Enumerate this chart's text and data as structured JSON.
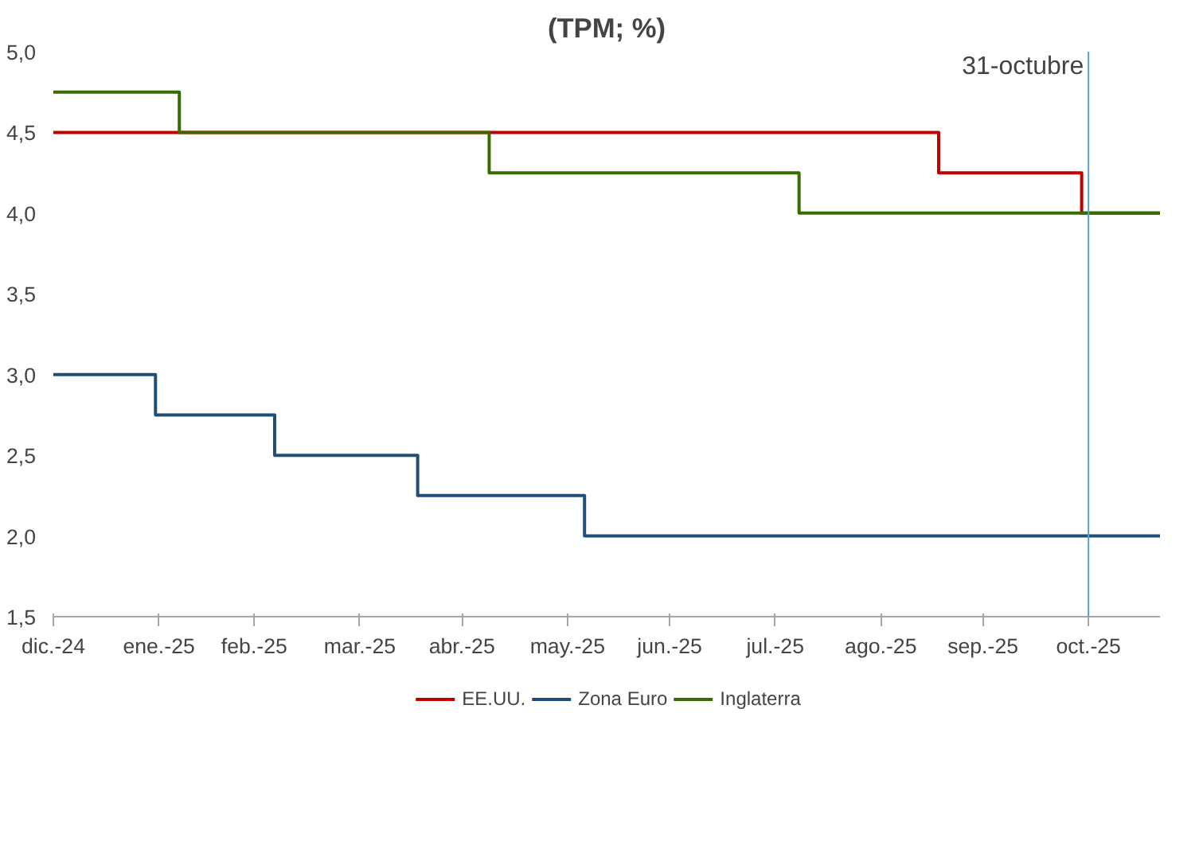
{
  "chart_data": {
    "type": "step",
    "title": "(TPM; %)",
    "xlim": [
      "2024-12-31",
      "2025-11-21"
    ],
    "xticks": [
      {
        "value": "2024-12-31",
        "label": "dic.-24"
      },
      {
        "value": "2025-01-31",
        "label": "ene.-25"
      },
      {
        "value": "2025-02-28",
        "label": "feb.-25"
      },
      {
        "value": "2025-03-31",
        "label": "mar.-25"
      },
      {
        "value": "2025-04-30",
        "label": "abr.-25"
      },
      {
        "value": "2025-05-31",
        "label": "may.-25"
      },
      {
        "value": "2025-06-30",
        "label": "jun.-25"
      },
      {
        "value": "2025-07-31",
        "label": "jul.-25"
      },
      {
        "value": "2025-08-31",
        "label": "ago.-25"
      },
      {
        "value": "2025-09-30",
        "label": "sep.-25"
      },
      {
        "value": "2025-10-31",
        "label": "oct.-25"
      }
    ],
    "ylim": [
      1.5,
      5.0
    ],
    "yticks": [
      {
        "value": 1.5,
        "label": "1,5"
      },
      {
        "value": 2.0,
        "label": "2,0"
      },
      {
        "value": 2.5,
        "label": "2,5"
      },
      {
        "value": 3.0,
        "label": "3,0"
      },
      {
        "value": 3.5,
        "label": "3,5"
      },
      {
        "value": 4.0,
        "label": "4,0"
      },
      {
        "value": 4.5,
        "label": "4,5"
      },
      {
        "value": 5.0,
        "label": "5,0"
      }
    ],
    "series": [
      {
        "name": "EE.UU.",
        "color": "#c00000",
        "x": [
          "2024-12-31",
          "2025-09-17",
          "2025-10-29",
          "2025-11-21"
        ],
        "values": [
          4.5,
          4.25,
          4.0,
          4.0
        ]
      },
      {
        "name": "Zona Euro",
        "color": "#1f4e79",
        "x": [
          "2024-12-31",
          "2025-01-30",
          "2025-03-06",
          "2025-04-17",
          "2025-06-05",
          "2025-11-21"
        ],
        "values": [
          3.0,
          2.75,
          2.5,
          2.25,
          2.0,
          2.0
        ]
      },
      {
        "name": "Inglaterra",
        "color": "#3a6b00",
        "x": [
          "2024-12-31",
          "2025-02-06",
          "2025-05-08",
          "2025-08-07",
          "2025-11-21"
        ],
        "values": [
          4.75,
          4.5,
          4.25,
          4.0,
          4.0
        ]
      }
    ],
    "ref_lines": [
      {
        "axis": "x",
        "value": "2025-10-31",
        "label": "31-octubre",
        "color": "#5b9bd5"
      }
    ],
    "grid": false,
    "legend": "bottom"
  }
}
